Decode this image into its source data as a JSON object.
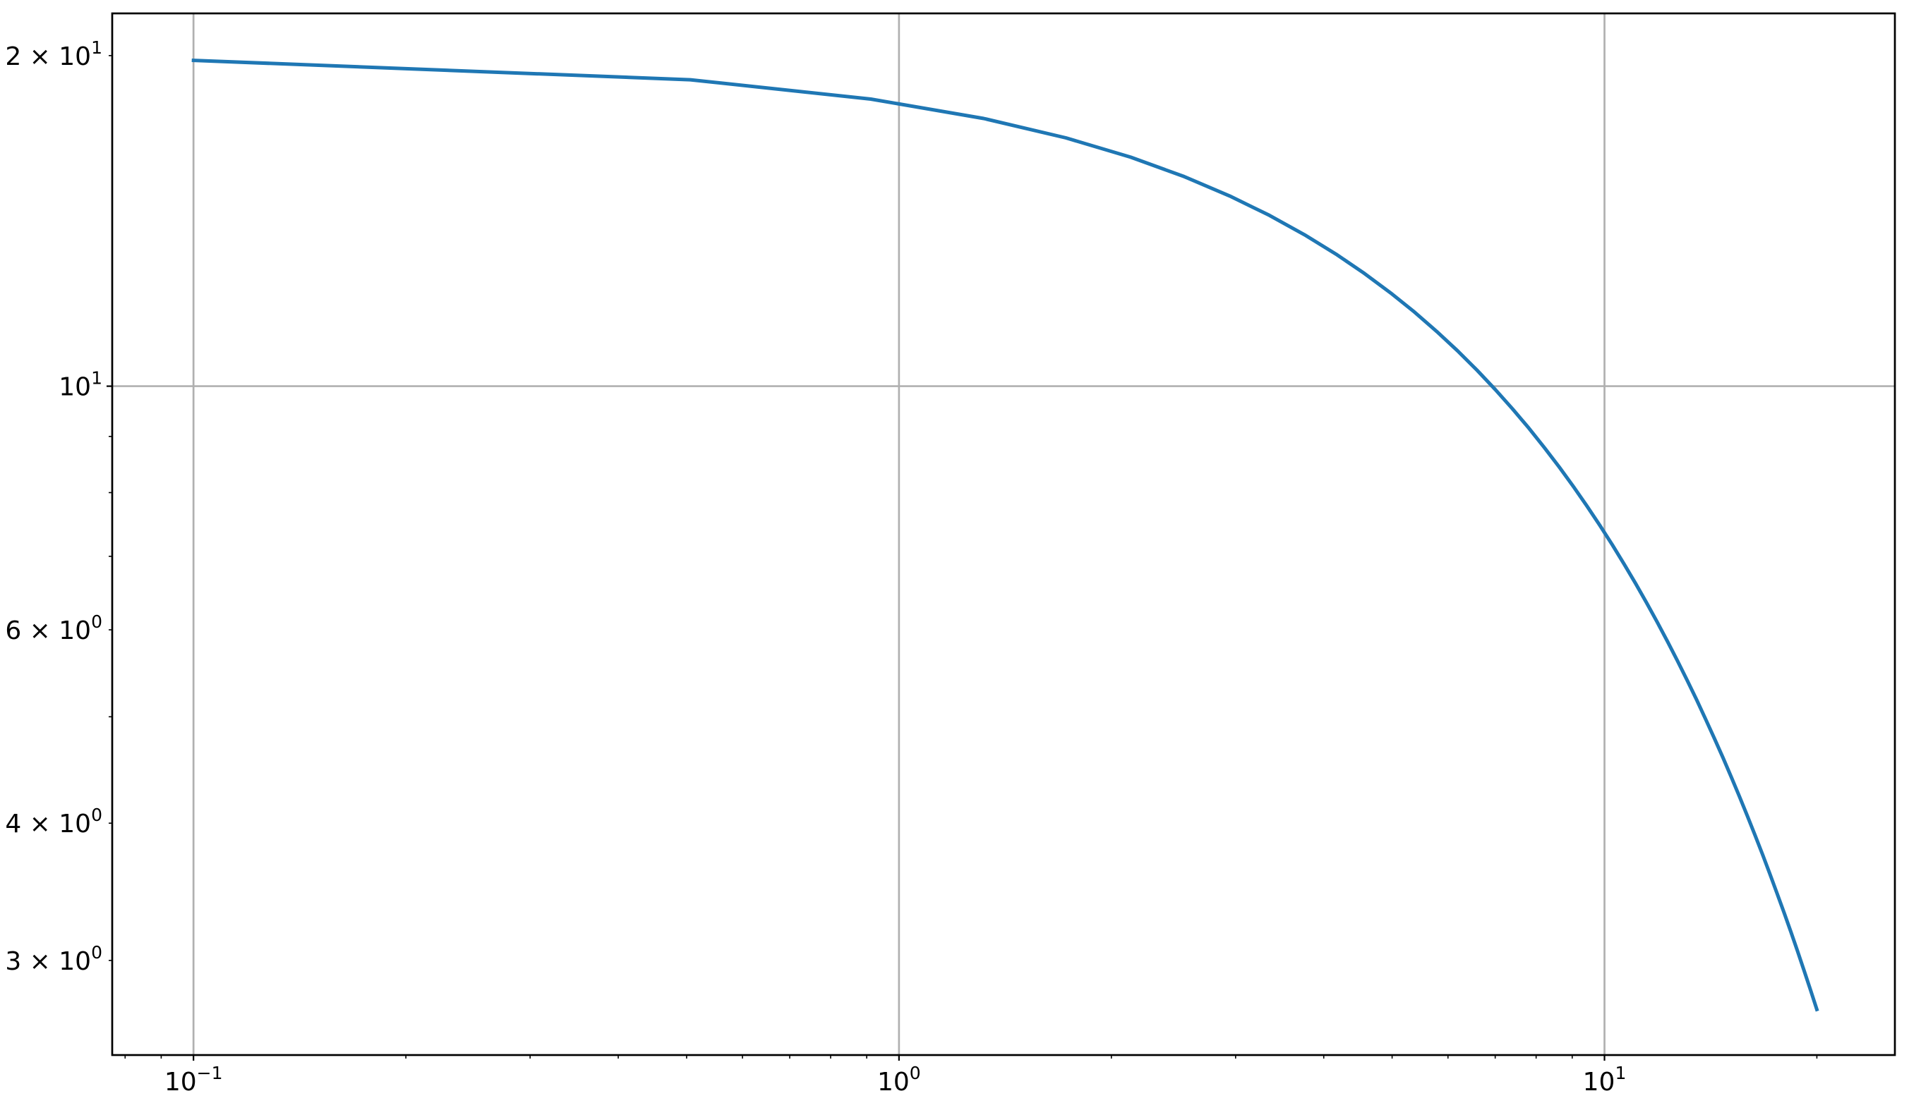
{
  "chart_data": {
    "type": "line",
    "title": "",
    "xlabel": "",
    "ylabel": "",
    "xscale": "log",
    "yscale": "log",
    "xlim": [
      0.0767,
      25.8
    ],
    "ylim": [
      2.46,
      21.85
    ],
    "grid": "major",
    "legend": "none",
    "colors": {
      "line": "#1f77b4",
      "grid": "#b0b0b0",
      "axes": "#000000"
    },
    "x_ticks": [
      {
        "value": 0.1,
        "base": "10",
        "exp": "−1"
      },
      {
        "value": 1,
        "base": "10",
        "exp": "0"
      },
      {
        "value": 10,
        "base": "10",
        "exp": "1"
      }
    ],
    "x_minor_ticks": [
      0.08,
      0.09,
      0.2,
      0.3,
      0.4,
      0.5,
      0.6,
      0.7,
      0.8,
      0.9,
      2,
      3,
      4,
      5,
      6,
      7,
      8,
      9,
      20
    ],
    "y_ticks": [
      {
        "value": 20,
        "mantissa": "2",
        "base": "10",
        "exp": "1"
      },
      {
        "value": 10,
        "mantissa": "",
        "base": "10",
        "exp": "1"
      },
      {
        "value": 6,
        "mantissa": "6",
        "base": "10",
        "exp": "0"
      },
      {
        "value": 4,
        "mantissa": "4",
        "base": "10",
        "exp": "0"
      },
      {
        "value": 3,
        "mantissa": "3",
        "base": "10",
        "exp": "0"
      }
    ],
    "y_minor_ticks": [
      3,
      4,
      5,
      6,
      7,
      8,
      9,
      20
    ],
    "series": [
      {
        "x": [
          0.1,
          0.5061,
          0.9122,
          1.3184,
          1.7245,
          2.1306,
          2.5367,
          2.9429,
          3.349,
          3.7551,
          4.1612,
          4.5673,
          4.9735,
          5.3796,
          5.7857,
          6.1918,
          6.598,
          7.0041,
          7.4102,
          7.8163,
          8.2224,
          8.6286,
          9.0347,
          9.4408,
          9.8469,
          10.2531,
          10.6592,
          11.0653,
          11.4714,
          11.8776,
          12.2837,
          12.6898,
          13.0959,
          13.502,
          13.9082,
          14.3143,
          14.7204,
          15.1265,
          15.5327,
          15.9388,
          16.3449,
          16.751,
          17.1571,
          17.5633,
          17.9694,
          18.3755,
          18.7816,
          19.1878,
          19.5939,
          20.0
        ],
        "y": [
          19.801,
          19.013,
          18.256,
          17.53,
          16.832,
          16.162,
          15.519,
          14.901,
          14.308,
          13.739,
          13.192,
          12.667,
          12.163,
          11.679,
          11.214,
          10.768,
          10.339,
          9.928,
          9.532,
          9.153,
          8.789,
          8.439,
          8.103,
          7.781,
          7.471,
          7.174,
          6.888,
          6.614,
          6.351,
          6.098,
          5.855,
          5.622,
          5.398,
          5.184,
          4.977,
          4.779,
          4.589,
          4.406,
          4.231,
          4.062,
          3.901,
          3.746,
          3.596,
          3.453,
          3.316,
          3.184,
          3.057,
          2.936,
          2.819,
          2.707
        ]
      }
    ]
  }
}
